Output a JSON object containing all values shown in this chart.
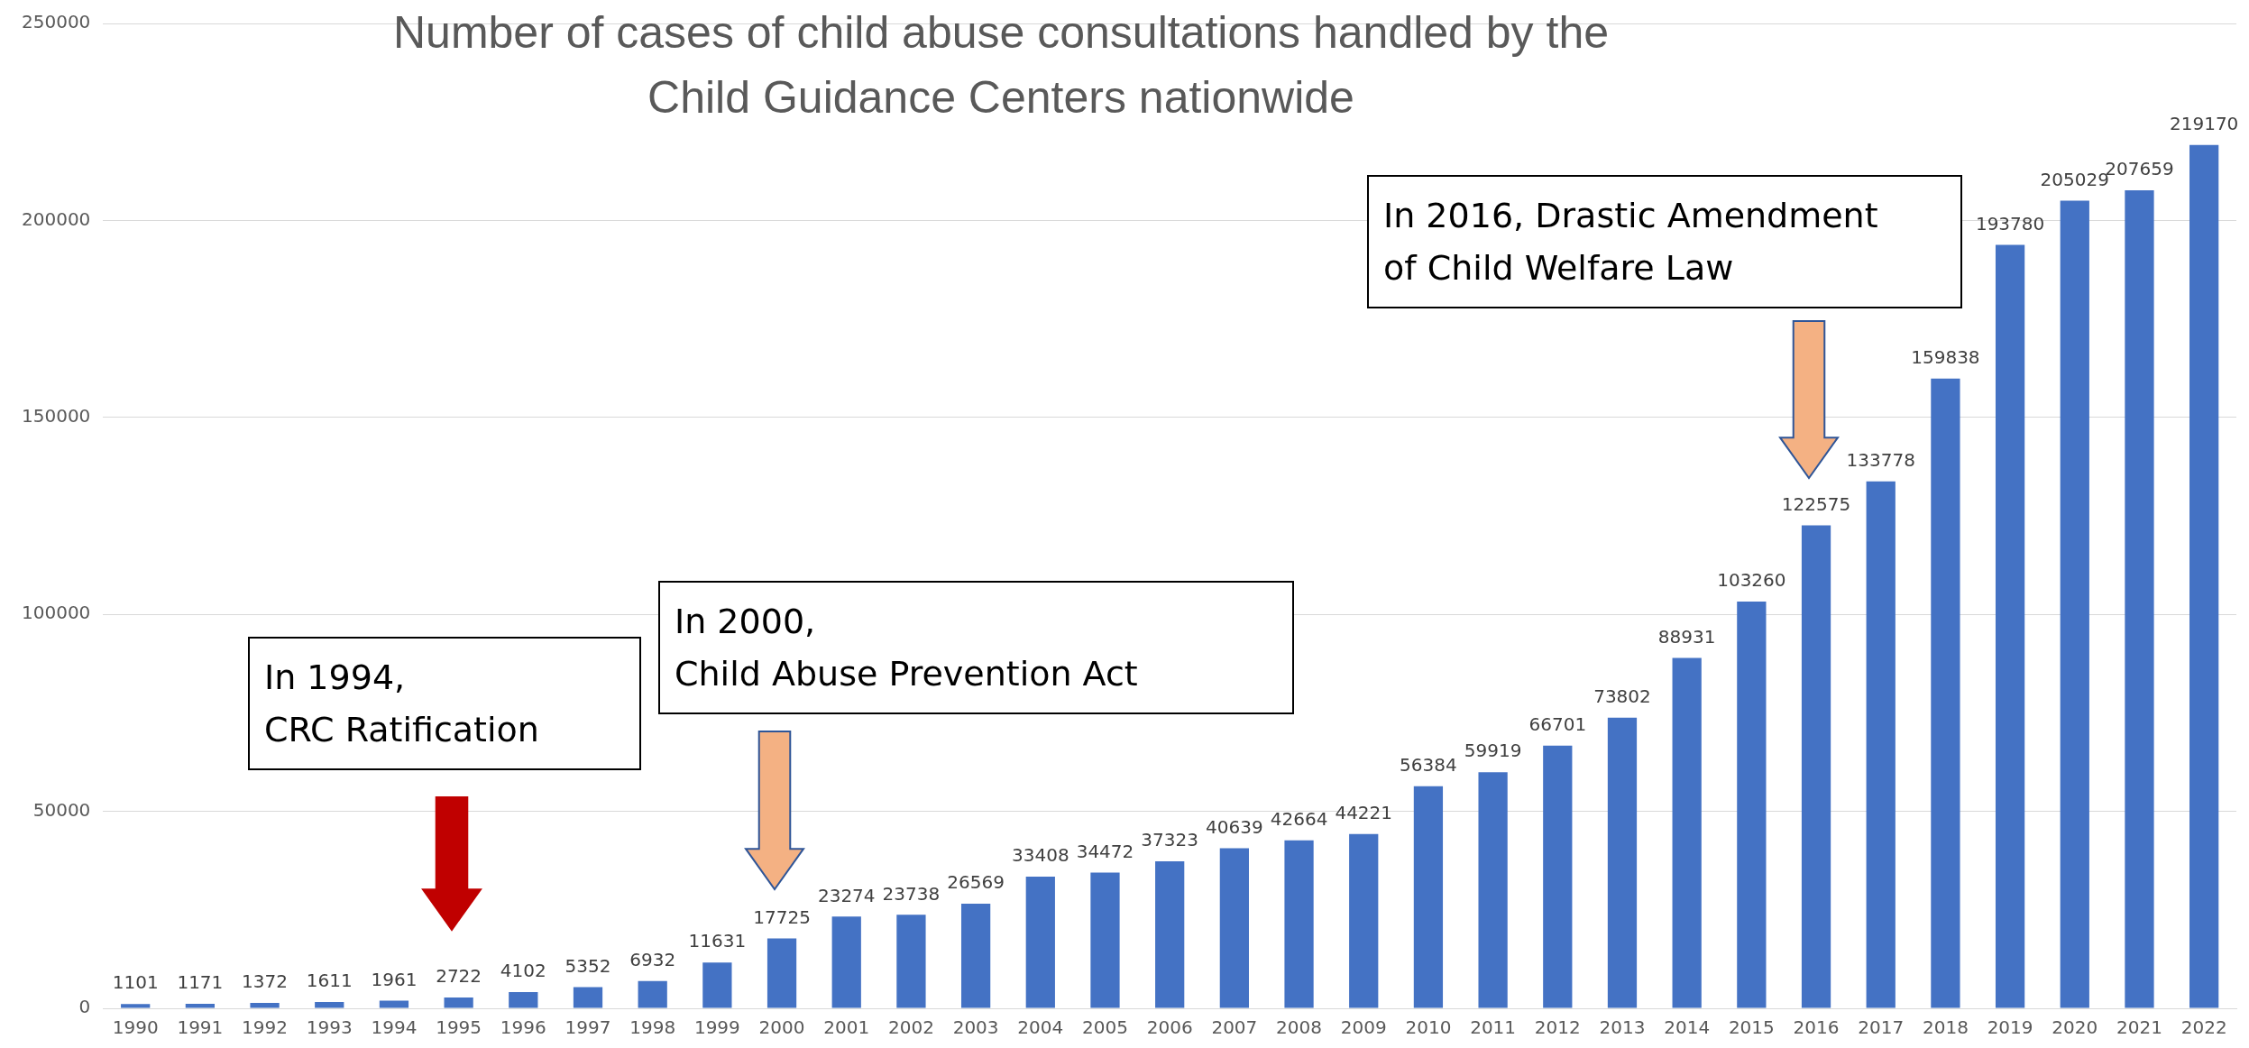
{
  "chart_data": {
    "type": "bar",
    "title": "Number of cases of child abuse consultations handled by the Child Guidance Centers nationwide",
    "categories": [
      "1990",
      "1991",
      "1992",
      "1993",
      "1994",
      "1995",
      "1996",
      "1997",
      "1998",
      "1999",
      "2000",
      "2001",
      "2002",
      "2003",
      "2004",
      "2005",
      "2006",
      "2007",
      "2008",
      "2009",
      "2010",
      "2011",
      "2012",
      "2013",
      "2014",
      "2015",
      "2016",
      "2017",
      "2018",
      "2019",
      "2020",
      "2021",
      "2022"
    ],
    "values": [
      1101,
      1171,
      1372,
      1611,
      1961,
      2722,
      4102,
      5352,
      6932,
      11631,
      17725,
      23274,
      23738,
      26569,
      33408,
      34472,
      37323,
      40639,
      42664,
      44221,
      56384,
      59919,
      66701,
      73802,
      88931,
      103260,
      122575,
      133778,
      159838,
      193780,
      205029,
      207659,
      219170
    ],
    "color": "#4472c4",
    "ylim": [
      0,
      250000
    ],
    "yticks": [
      0,
      50000,
      100000,
      150000,
      200000,
      250000
    ],
    "grid": "y",
    "data_labels": true,
    "annotations": [
      "In 1994,\nCRC Ratification",
      "In 2000,\nChild Abuse Prevention Act",
      "In 2016, Drastic Amendment\nof Child Welfare Law"
    ]
  }
}
